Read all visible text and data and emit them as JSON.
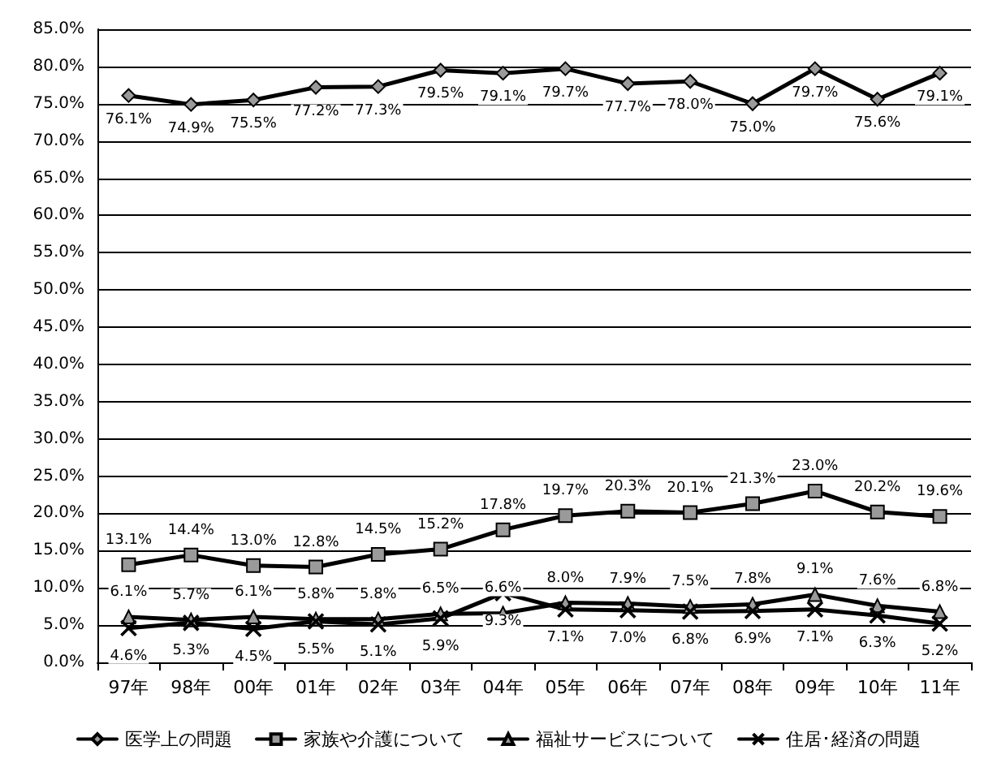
{
  "chart_data": {
    "type": "line",
    "categories": [
      "97年",
      "98年",
      "00年",
      "01年",
      "02年",
      "03年",
      "04年",
      "05年",
      "06年",
      "07年",
      "08年",
      "09年",
      "10年",
      "11年"
    ],
    "series": [
      {
        "name": "医学上の問題",
        "color": "#000000",
        "marker": "diamond",
        "values": [
          76.1,
          74.9,
          75.5,
          77.2,
          77.3,
          79.5,
          79.1,
          79.7,
          77.7,
          78.0,
          75.0,
          79.7,
          75.6,
          79.1
        ],
        "value_labels": [
          "76.1%",
          "74.9%",
          "75.5%",
          "77.2%",
          "77.3%",
          "79.5%",
          "79.1%",
          "79.7%",
          "77.7%",
          "78.0%",
          "75.0%",
          "79.7%",
          "75.6%",
          "79.1%"
        ]
      },
      {
        "name": "家族や介護について",
        "color": "#000000",
        "marker": "square",
        "values": [
          13.1,
          14.4,
          13.0,
          12.8,
          14.5,
          15.2,
          17.8,
          19.7,
          20.3,
          20.1,
          21.3,
          23.0,
          20.2,
          19.6
        ],
        "value_labels": [
          "13.1%",
          "14.4%",
          "13.0%",
          "12.8%",
          "14.5%",
          "15.2%",
          "17.8%",
          "19.7%",
          "20.3%",
          "20.1%",
          "21.3%",
          "23.0%",
          "20.2%",
          "19.6%"
        ]
      },
      {
        "name": "福祉サービスについて",
        "color": "#000000",
        "marker": "triangle",
        "values": [
          6.1,
          5.7,
          6.1,
          5.8,
          5.8,
          6.5,
          6.6,
          8.0,
          7.9,
          7.5,
          7.8,
          9.1,
          7.6,
          6.8
        ],
        "value_labels": [
          "6.1%",
          "5.7%",
          "6.1%",
          "5.8%",
          "5.8%",
          "6.5%",
          "6.6%",
          "8.0%",
          "7.9%",
          "7.5%",
          "7.8%",
          "9.1%",
          "7.6%",
          "6.8%"
        ]
      },
      {
        "name": "住居･経済の問題",
        "color": "#000000",
        "marker": "cross",
        "values": [
          4.6,
          5.3,
          4.5,
          5.5,
          5.1,
          5.9,
          9.3,
          7.1,
          7.0,
          6.8,
          6.9,
          7.1,
          6.3,
          5.2
        ],
        "value_labels": [
          "4.6%",
          "5.3%",
          "4.5%",
          "5.5%",
          "5.1%",
          "5.9%",
          "9.3%",
          "7.1%",
          "7.0%",
          "6.8%",
          "6.9%",
          "7.1%",
          "6.3%",
          "5.2%"
        ]
      }
    ],
    "ylim": [
      0,
      85
    ],
    "yticks": [
      {
        "value": 0,
        "label": "0.0%"
      },
      {
        "value": 5,
        "label": "5.0%"
      },
      {
        "value": 10,
        "label": "10.0%"
      },
      {
        "value": 15,
        "label": "15.0%"
      },
      {
        "value": 20,
        "label": "20.0%"
      },
      {
        "value": 25,
        "label": "25.0%"
      },
      {
        "value": 30,
        "label": "30.0%"
      },
      {
        "value": 35,
        "label": "35.0%"
      },
      {
        "value": 40,
        "label": "40.0%"
      },
      {
        "value": 45,
        "label": "45.0%"
      },
      {
        "value": 50,
        "label": "50.0%"
      },
      {
        "value": 55,
        "label": "55.0%"
      },
      {
        "value": 60,
        "label": "60.0%"
      },
      {
        "value": 65,
        "label": "65.0%"
      },
      {
        "value": 70,
        "label": "70.0%"
      },
      {
        "value": 75,
        "label": "75.0%"
      },
      {
        "value": 80,
        "label": "80.0%"
      },
      {
        "value": 85,
        "label": "85.0%"
      }
    ],
    "grid": "y",
    "legend": "bottom",
    "line_style": "solid"
  }
}
